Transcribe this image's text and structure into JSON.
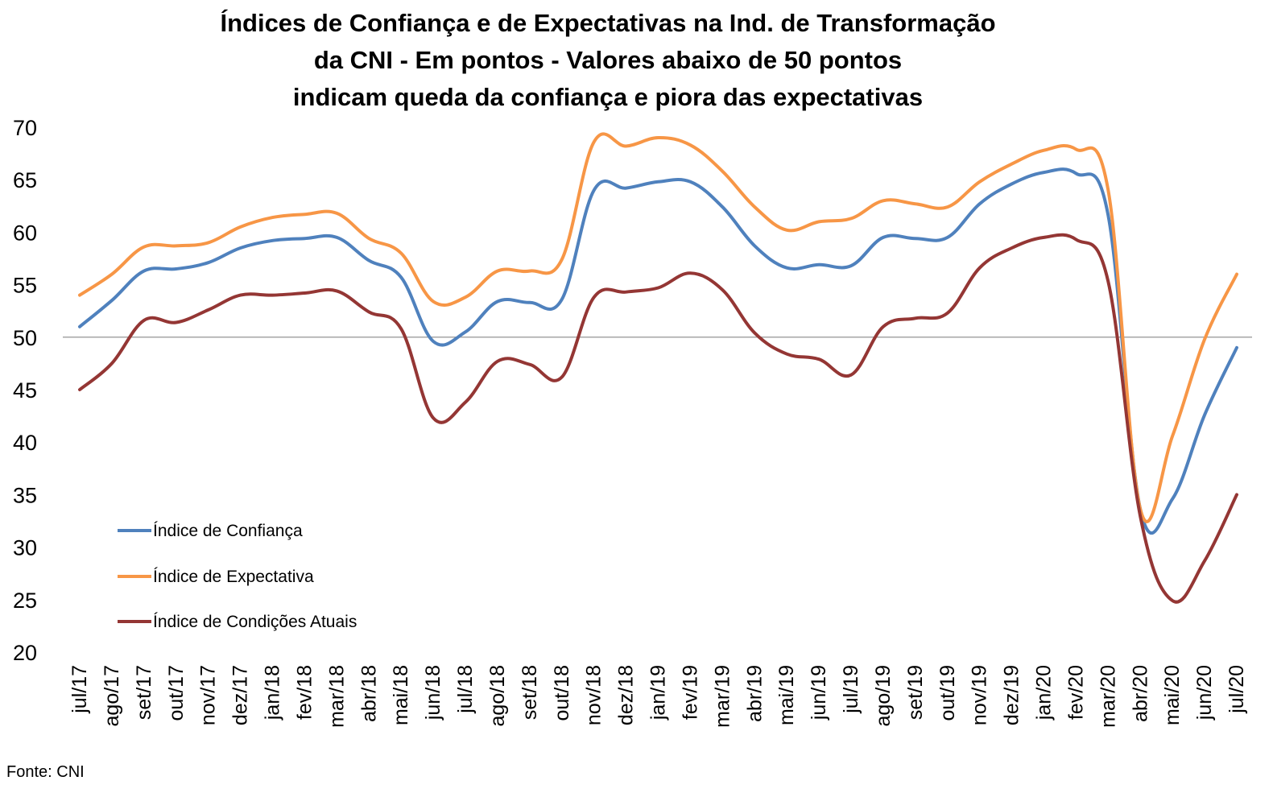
{
  "chart_data": {
    "type": "line",
    "title": [
      "Índices de Confiança e de Expectativas na Ind. de Transformação",
      "da CNI - Em pontos - Valores abaixo de 50 pontos",
      "indicam queda da confiança e piora das expectativas"
    ],
    "categories": [
      "jul/17",
      "ago/17",
      "set/17",
      "out/17",
      "nov/17",
      "dez/17",
      "jan/18",
      "fev/18",
      "mar/18",
      "abr/18",
      "mai/18",
      "jun/18",
      "jul/18",
      "ago/18",
      "set/18",
      "out/18",
      "nov/18",
      "dez/18",
      "jan/19",
      "fev/19",
      "mar/19",
      "abr/19",
      "mai/19",
      "jun/19",
      "jul/19",
      "ago/19",
      "set/19",
      "out/19",
      "nov/19",
      "dez/19",
      "jan/20",
      "fev/20",
      "mar/20",
      "abr/20",
      "mai/20",
      "jun/20",
      "jul/20"
    ],
    "series": [
      {
        "name": "Índice de Confiança",
        "color": "#4F81BD",
        "values": [
          51.0,
          53.5,
          56.3,
          56.5,
          57.1,
          58.5,
          59.2,
          59.4,
          59.5,
          57.3,
          55.7,
          49.6,
          50.5,
          53.4,
          53.3,
          53.6,
          64.0,
          64.2,
          64.8,
          64.8,
          62.4,
          58.7,
          56.6,
          56.9,
          56.8,
          59.5,
          59.4,
          59.5,
          62.7,
          64.6,
          65.7,
          65.6,
          61.6,
          33.6,
          34.6,
          42.6,
          49.0
        ]
      },
      {
        "name": "Índice de Expectativa",
        "color": "#F79646",
        "values": [
          54.0,
          56.0,
          58.6,
          58.7,
          59.0,
          60.5,
          61.4,
          61.7,
          61.8,
          59.4,
          58.0,
          53.4,
          53.8,
          56.3,
          56.3,
          57.4,
          68.6,
          68.2,
          69.0,
          68.3,
          65.8,
          62.4,
          60.2,
          61.0,
          61.3,
          63.0,
          62.7,
          62.4,
          64.8,
          66.5,
          67.8,
          67.9,
          64.0,
          33.6,
          40.6,
          49.8,
          56.0
        ]
      },
      {
        "name": "Índice de Condições Atuais",
        "color": "#943634",
        "values": [
          45.0,
          47.5,
          51.6,
          51.4,
          52.6,
          54.0,
          54.0,
          54.2,
          54.4,
          52.4,
          50.8,
          42.3,
          43.8,
          47.7,
          47.4,
          46.2,
          53.8,
          54.3,
          54.7,
          56.1,
          54.5,
          50.4,
          48.4,
          47.9,
          46.4,
          51.0,
          51.8,
          52.3,
          56.6,
          58.5,
          59.5,
          59.3,
          55.3,
          32.9,
          24.9,
          28.7,
          35.0
        ]
      }
    ],
    "ylim": [
      20,
      70
    ],
    "yticks": [
      "20",
      "25",
      "30",
      "35",
      "40",
      "45",
      "50",
      "55",
      "60",
      "65",
      "70"
    ],
    "reference_line": 50,
    "grid": false,
    "legend_position": "left"
  },
  "source": "Fonte: CNI"
}
